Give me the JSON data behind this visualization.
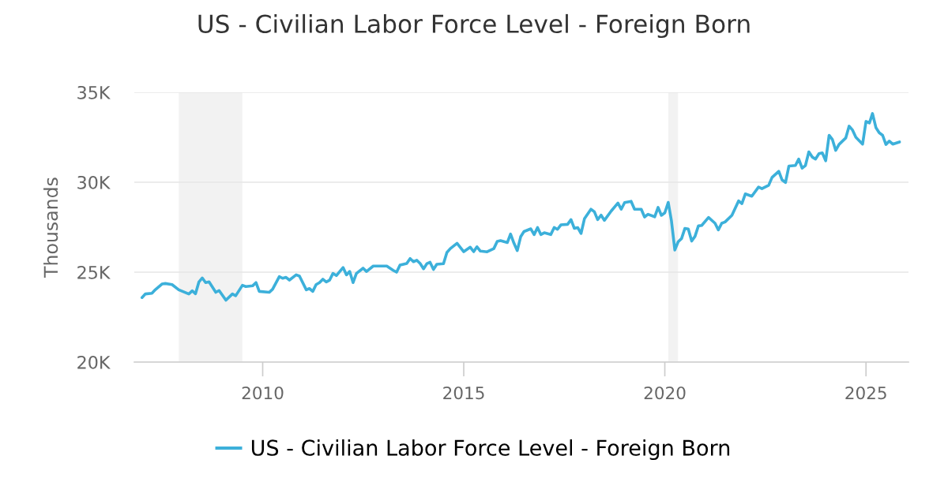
{
  "chart_data": {
    "type": "line",
    "title": "US - Civilian Labor Force Level - Foreign Born",
    "ylabel": "Thousands",
    "xlim": [
      "2006-10-23",
      "2026-01-22"
    ],
    "xticks": [
      "2010",
      "2015",
      "2020",
      "2025"
    ],
    "ylim": [
      20000,
      35000
    ],
    "yticks": [
      {
        "value": 20000,
        "label": "20K"
      },
      {
        "value": 25000,
        "label": "25K"
      },
      {
        "value": 30000,
        "label": "30K"
      },
      {
        "value": 35000,
        "label": "35K"
      }
    ],
    "grid": "y",
    "legend": "bottom",
    "bands": [
      {
        "axis": "x",
        "from": "2007-12-01",
        "to": "2009-06-30",
        "color": "#f2f2f2"
      },
      {
        "axis": "x",
        "from": "2020-02-01",
        "to": "2020-04-30",
        "color": "#f2f2f2"
      }
    ],
    "x": [
      "2007-01",
      "2007-02",
      "2007-04",
      "2007-05",
      "2007-07",
      "2007-08",
      "2007-10",
      "2007-12",
      "2008-03",
      "2008-04",
      "2008-05",
      "2008-06",
      "2008-07",
      "2008-08",
      "2008-09",
      "2008-11",
      "2008-12",
      "2009-02",
      "2009-04",
      "2009-05",
      "2009-07",
      "2009-08",
      "2009-10",
      "2009-11",
      "2009-12",
      "2010-03",
      "2010-04",
      "2010-06",
      "2010-07",
      "2010-08",
      "2010-09",
      "2010-11",
      "2010-12",
      "2011-02",
      "2011-03",
      "2011-04",
      "2011-05",
      "2011-06",
      "2011-07",
      "2011-08",
      "2011-09",
      "2011-10",
      "2011-11",
      "2012-01",
      "2012-02",
      "2012-03",
      "2012-04",
      "2012-05",
      "2012-07",
      "2012-08",
      "2012-10",
      "2013-02",
      "2013-04",
      "2013-05",
      "2013-06",
      "2013-08",
      "2013-09",
      "2013-10",
      "2013-11",
      "2013-12",
      "2014-01",
      "2014-02",
      "2014-03",
      "2014-04",
      "2014-05",
      "2014-07",
      "2014-08",
      "2014-09",
      "2014-11",
      "2015-01",
      "2015-03",
      "2015-04",
      "2015-05",
      "2015-06",
      "2015-08",
      "2015-10",
      "2015-11",
      "2015-12",
      "2016-02",
      "2016-03",
      "2016-04",
      "2016-05",
      "2016-06",
      "2016-07",
      "2016-09",
      "2016-10",
      "2016-11",
      "2016-12",
      "2017-01",
      "2017-03",
      "2017-04",
      "2017-05",
      "2017-06",
      "2017-08",
      "2017-09",
      "2017-10",
      "2017-11",
      "2017-12",
      "2018-01",
      "2018-03",
      "2018-04",
      "2018-05",
      "2018-06",
      "2018-07",
      "2018-09",
      "2018-11",
      "2018-12",
      "2019-01",
      "2019-03",
      "2019-04",
      "2019-06",
      "2019-07",
      "2019-08",
      "2019-10",
      "2019-11",
      "2019-12",
      "2020-01",
      "2020-02",
      "2020-03",
      "2020-04",
      "2020-05",
      "2020-06",
      "2020-07",
      "2020-08",
      "2020-09",
      "2020-10",
      "2020-11",
      "2020-12",
      "2021-02",
      "2021-04",
      "2021-05",
      "2021-06",
      "2021-07",
      "2021-09",
      "2021-11",
      "2021-12",
      "2022-01",
      "2022-03",
      "2022-05",
      "2022-06",
      "2022-08",
      "2022-09",
      "2022-11",
      "2022-12",
      "2023-01",
      "2023-02",
      "2023-04",
      "2023-05",
      "2023-06",
      "2023-07",
      "2023-08",
      "2023-09",
      "2023-10",
      "2023-11",
      "2023-12",
      "2024-01",
      "2024-02",
      "2024-03",
      "2024-04",
      "2024-05",
      "2024-07",
      "2024-08",
      "2024-09",
      "2024-10",
      "2024-12",
      "2025-01",
      "2025-02",
      "2025-03",
      "2025-04",
      "2025-05",
      "2025-06",
      "2025-07",
      "2025-08",
      "2025-09",
      "2025-11"
    ],
    "series": [
      {
        "name": "US - Civilian Labor Force Level - Foreign Born",
        "color": "#3cb0da",
        "values": [
          23590,
          23790,
          23830,
          24020,
          24340,
          24370,
          24310,
          24020,
          23790,
          23960,
          23800,
          24460,
          24680,
          24420,
          24460,
          23880,
          23980,
          23440,
          23790,
          23690,
          24270,
          24200,
          24240,
          24420,
          23930,
          23880,
          24050,
          24750,
          24660,
          24710,
          24560,
          24850,
          24780,
          24020,
          24090,
          23930,
          24310,
          24420,
          24610,
          24460,
          24560,
          24930,
          24810,
          25260,
          24850,
          25040,
          24420,
          24930,
          25220,
          25040,
          25340,
          25340,
          25100,
          25000,
          25390,
          25480,
          25760,
          25580,
          25660,
          25480,
          25190,
          25480,
          25550,
          25150,
          25440,
          25470,
          26100,
          26310,
          26610,
          26140,
          26390,
          26140,
          26410,
          26170,
          26130,
          26310,
          26710,
          26750,
          26650,
          27120,
          26610,
          26200,
          26970,
          27260,
          27410,
          27090,
          27480,
          27090,
          27190,
          27090,
          27480,
          27380,
          27630,
          27660,
          27920,
          27440,
          27480,
          27150,
          27970,
          28500,
          28360,
          27920,
          28170,
          27880,
          28400,
          28840,
          28500,
          28870,
          28940,
          28500,
          28500,
          28070,
          28220,
          28080,
          28600,
          28160,
          28300,
          28880,
          27860,
          26230,
          26690,
          26870,
          27430,
          27400,
          26730,
          26990,
          27570,
          27600,
          28040,
          27720,
          27350,
          27720,
          27790,
          28160,
          28960,
          28810,
          29350,
          29220,
          29730,
          29640,
          29830,
          30270,
          30610,
          30130,
          29980,
          30900,
          30930,
          31290,
          30780,
          30930,
          31690,
          31400,
          31290,
          31590,
          31630,
          31190,
          32610,
          32390,
          31770,
          32100,
          32460,
          33120,
          32900,
          32500,
          32120,
          33380,
          33290,
          33820,
          33040,
          32750,
          32610,
          32100,
          32290,
          32120,
          32240
        ]
      }
    ]
  }
}
